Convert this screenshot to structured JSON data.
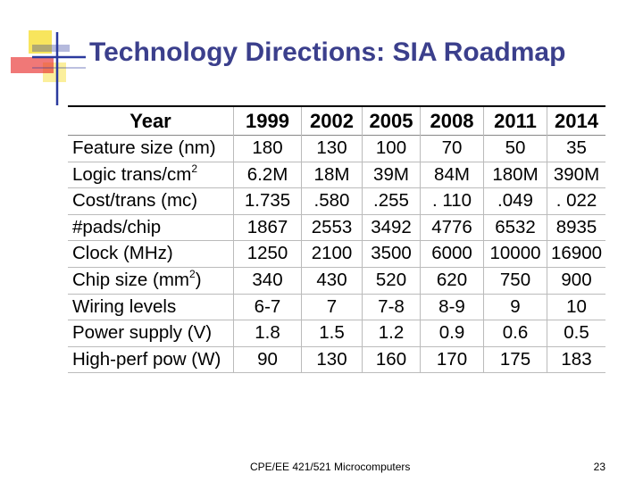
{
  "slide": {
    "title": "Technology Directions: SIA Roadmap",
    "footer": "CPE/EE 421/521 Microcomputers",
    "page_number": "23"
  },
  "table": {
    "header": [
      "Year",
      "1999",
      "2002",
      "2005",
      "2008",
      "2011",
      "2014"
    ],
    "rows": [
      {
        "label": "Feature size (nm)",
        "values": [
          "180",
          "130",
          "100",
          "70",
          "50",
          "35"
        ]
      },
      {
        "label": "Logic trans/cm",
        "sup": "2",
        "label_suffix": "",
        "values": [
          "6.2M",
          "18M",
          "39M",
          "84M",
          "180M",
          "390M"
        ]
      },
      {
        "label": "Cost/trans (mc)",
        "values": [
          "1.735",
          ".580",
          ".255",
          ". 110",
          ".049",
          ". 022"
        ]
      },
      {
        "label": "#pads/chip",
        "values": [
          "1867",
          "2553",
          "3492",
          "4776",
          "6532",
          "8935"
        ]
      },
      {
        "label": "Clock (MHz)",
        "values": [
          "1250",
          "2100",
          "3500",
          "6000",
          "10000",
          "16900"
        ]
      },
      {
        "label": "Chip size (mm",
        "sup": "2",
        "label_suffix": ")",
        "values": [
          "340",
          "430",
          "520",
          "620",
          "750",
          "900"
        ]
      },
      {
        "label": "Wiring levels",
        "values": [
          "6-7",
          "7",
          "7-8",
          "8-9",
          "9",
          "10"
        ]
      },
      {
        "label": "Power supply (V)",
        "values": [
          "1.8",
          "1.5",
          "1.2",
          "0.9",
          "0.6",
          "0.5"
        ]
      },
      {
        "label": "High-perf pow (W)",
        "values": [
          "90",
          "130",
          "160",
          "170",
          "175",
          "183"
        ]
      }
    ]
  },
  "colors": {
    "title": "#3b3f8c",
    "logo_yellow": "#f7e24b",
    "logo_red": "#e8302e",
    "logo_blue": "#2b3a9e"
  }
}
